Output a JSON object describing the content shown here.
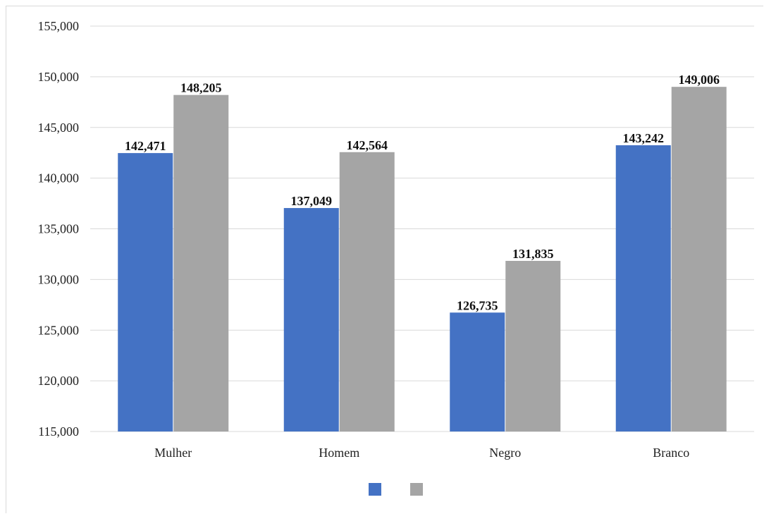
{
  "chart_data": {
    "type": "bar",
    "categories": [
      "Mulher",
      "Homem",
      "Negro",
      "Branco"
    ],
    "series": [
      {
        "values": [
          142471,
          137049,
          126735,
          143242
        ],
        "color": "#4472c4"
      },
      {
        "values": [
          148205,
          142564,
          131835,
          149006
        ],
        "color": "#a5a5a5"
      }
    ],
    "data_labels": [
      [
        "142,471",
        "137,049",
        "126,735",
        "143,242"
      ],
      [
        "148,205",
        "142,564",
        "131,835",
        "149,006"
      ]
    ],
    "yticks": [
      "115,000",
      "120,000",
      "125,000",
      "130,000",
      "135,000",
      "140,000",
      "145,000",
      "150,000",
      "155,000"
    ],
    "ylim": [
      115000,
      155000
    ],
    "grid": true,
    "legend": "bottom-center",
    "title": "",
    "xlabel": "",
    "ylabel": ""
  }
}
